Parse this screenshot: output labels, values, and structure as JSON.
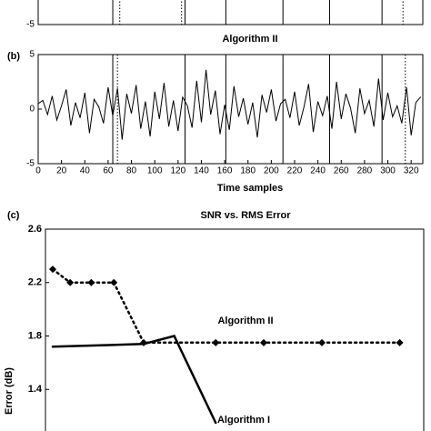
{
  "chart_data": [
    {
      "type": "line",
      "ylim": [
        -5,
        5
      ],
      "yticks": [
        -5
      ],
      "xlim": [
        0,
        330
      ],
      "vlines_solid": [
        64,
        126,
        161,
        210,
        250,
        295
      ],
      "vlines_dotted": [
        70,
        123,
        313
      ]
    },
    {
      "type": "line",
      "panel_label": "(b)",
      "title": "Algorithm II",
      "xlabel": "Time samples",
      "xlim": [
        0,
        330
      ],
      "ylim": [
        -5,
        5
      ],
      "xticks": [
        0,
        20,
        40,
        60,
        80,
        100,
        120,
        140,
        160,
        180,
        200,
        220,
        240,
        260,
        280,
        300,
        320
      ],
      "yticks": [
        -5,
        0,
        5
      ],
      "vlines_solid": [
        64,
        126,
        161,
        210,
        250,
        295
      ],
      "vlines_dotted": [
        68,
        315
      ],
      "x": [
        0,
        4,
        8,
        12,
        16,
        20,
        24,
        28,
        32,
        36,
        40,
        44,
        48,
        52,
        56,
        60,
        64,
        68,
        72,
        76,
        80,
        84,
        88,
        92,
        96,
        100,
        104,
        108,
        112,
        116,
        120,
        124,
        128,
        132,
        136,
        140,
        144,
        148,
        152,
        156,
        160,
        164,
        168,
        172,
        176,
        180,
        184,
        188,
        192,
        196,
        200,
        204,
        208,
        212,
        216,
        220,
        224,
        228,
        232,
        236,
        240,
        244,
        248,
        252,
        256,
        260,
        264,
        268,
        272,
        276,
        280,
        284,
        288,
        292,
        296,
        300,
        304,
        308,
        312,
        316,
        320,
        324,
        328
      ],
      "series": [
        {
          "color": "#000000",
          "values": [
            0.5,
            0.8,
            -0.5,
            1.2,
            -1.0,
            0.3,
            1.8,
            -1.5,
            0.6,
            -0.8,
            1.5,
            -2.2,
            0.9,
            0.2,
            -1.3,
            2.0,
            -0.6,
            1.9,
            -2.8,
            1.4,
            -0.4,
            2.2,
            -1.8,
            0.7,
            -2.5,
            1.6,
            -0.9,
            2.4,
            -1.6,
            0.8,
            -2.0,
            1.1,
            0.3,
            -1.7,
            2.6,
            -1.2,
            3.6,
            -0.5,
            1.7,
            -2.3,
            0.4,
            -1.9,
            2.1,
            -0.7,
            1.0,
            -1.4,
            0.6,
            -2.6,
            1.3,
            -0.3,
            1.8,
            -1.1,
            0.5,
            0.9,
            -0.8,
            1.6,
            -1.5,
            0.2,
            2.3,
            -2.1,
            0.7,
            -0.6,
            1.2,
            -1.8,
            2.5,
            -0.9,
            1.4,
            0.1,
            -2.2,
            1.9,
            -0.4,
            0.8,
            -1.6,
            2.8,
            -1.0,
            1.5,
            -0.7,
            0.3,
            -1.3,
            2.0,
            -2.4,
            0.6,
            1.1
          ]
        }
      ]
    },
    {
      "type": "line",
      "panel_label": "(c)",
      "title": "SNR vs. RMS Error",
      "ylabel": "Error (dB)",
      "xlim": [
        -1,
        51
      ],
      "ylim": [
        1.0,
        2.6
      ],
      "yticks": [
        2.6,
        2.2,
        1.8,
        1.4
      ],
      "series": [
        {
          "name": "Algorithm II",
          "color": "#000000",
          "style": "dotted",
          "marker": "diamond",
          "x": [
            0,
            2.4,
            5.3,
            8.4,
            12.5,
            22.4,
            29,
            37,
            47.7
          ],
          "values": [
            2.3,
            2.2,
            2.2,
            2.2,
            1.75,
            1.75,
            1.75,
            1.75,
            1.75
          ]
        },
        {
          "name": "Algorithm I",
          "color": "#000000",
          "style": "solid",
          "x": [
            0,
            12.5,
            16.7,
            22.4
          ],
          "values": [
            1.72,
            1.74,
            1.8,
            1.15
          ]
        }
      ]
    }
  ]
}
